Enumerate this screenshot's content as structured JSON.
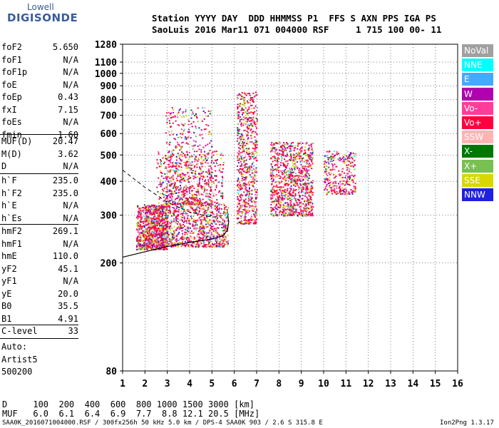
{
  "logo": {
    "line1": "Lowell",
    "line2": "DIGISONDE"
  },
  "header": {
    "line1": "Station YYYY DAY  DDD HHMMSS P1  FFS S AXN PPS IGA PS",
    "line2": "SaoLuis 2016 Mar11 071 004000 RSF     1 715 100 00- 11"
  },
  "params_group1": [
    {
      "k": "foF2",
      "v": "5.650"
    },
    {
      "k": "foF1",
      "v": "N/A"
    },
    {
      "k": "foF1p",
      "v": "N/A"
    },
    {
      "k": "foE",
      "v": "N/A"
    },
    {
      "k": "foEp",
      "v": "0.43"
    },
    {
      "k": "fxI",
      "v": "7.15"
    },
    {
      "k": "foEs",
      "v": "N/A"
    },
    {
      "k": "fmin",
      "v": "1.60"
    }
  ],
  "params_group2": [
    {
      "k": "MUF(D)",
      "v": "20.47"
    },
    {
      "k": "M(D)",
      "v": "3.62"
    },
    {
      "k": "D",
      "v": "N/A"
    }
  ],
  "params_group3": [
    {
      "k": "h`F",
      "v": "235.0"
    },
    {
      "k": "h`F2",
      "v": "235.0"
    },
    {
      "k": "h`E",
      "v": "N/A"
    },
    {
      "k": "h`Es",
      "v": "N/A"
    }
  ],
  "params_group4": [
    {
      "k": "hmF2",
      "v": "269.1"
    },
    {
      "k": "hmF1",
      "v": "N/A"
    },
    {
      "k": "hmE",
      "v": "110.0"
    },
    {
      "k": "yF2",
      "v": "45.1"
    },
    {
      "k": "yF1",
      "v": "N/A"
    },
    {
      "k": "yE",
      "v": "20.0"
    },
    {
      "k": "B0",
      "v": "35.5"
    },
    {
      "k": "B1",
      "v": "4.91"
    }
  ],
  "clevel": {
    "k": "C-level",
    "v": "33"
  },
  "auto": [
    "Auto:",
    "Artist5",
    "500200"
  ],
  "legend": [
    {
      "label": "NoVal",
      "color": "#a0a0a0"
    },
    {
      "label": "NNE",
      "color": "#00ffff"
    },
    {
      "label": "E",
      "color": "#44aaff"
    },
    {
      "label": "W",
      "color": "#b000b0"
    },
    {
      "label": "Vo-",
      "color": "#ff3c9a"
    },
    {
      "label": "Vo+",
      "color": "#ff0040"
    },
    {
      "label": "SSW",
      "color": "#ffb4b4"
    },
    {
      "label": "X-",
      "color": "#007800"
    },
    {
      "label": "X+",
      "color": "#78c050"
    },
    {
      "label": "SSE",
      "color": "#d8d800"
    },
    {
      "label": "NNW",
      "color": "#2020e0"
    }
  ],
  "chart_data": {
    "type": "scatter",
    "xlabel": "",
    "ylabel": "",
    "xlim": [
      1,
      16
    ],
    "ylim": [
      80,
      1280
    ],
    "y_scale": "log",
    "x_ticks": [
      1,
      2,
      3,
      4,
      5,
      6,
      7,
      8,
      9,
      10,
      11,
      12,
      13,
      14,
      15,
      16
    ],
    "y_ticks": [
      80,
      200,
      300,
      400,
      500,
      600,
      700,
      800,
      900,
      1000,
      1100,
      1280
    ],
    "grid": true,
    "clusters": [
      {
        "f": [
          1.6,
          3.0
        ],
        "h": [
          225,
          330
        ]
      },
      {
        "f": [
          2.0,
          5.7
        ],
        "h": [
          230,
          330
        ]
      },
      {
        "f": [
          2.9,
          5.0
        ],
        "h": [
          330,
          760
        ]
      },
      {
        "f": [
          2.5,
          5.5
        ],
        "h": [
          330,
          520
        ]
      },
      {
        "f": [
          6.1,
          7.0
        ],
        "h": [
          280,
          860
        ]
      },
      {
        "f": [
          7.6,
          9.5
        ],
        "h": [
          300,
          560
        ]
      },
      {
        "f": [
          10.0,
          11.4
        ],
        "h": [
          360,
          520
        ]
      }
    ],
    "profile_solid": [
      [
        1.0,
        210
      ],
      [
        2.0,
        220
      ],
      [
        3.0,
        230
      ],
      [
        4.0,
        238
      ],
      [
        5.0,
        245
      ],
      [
        5.5,
        252
      ],
      [
        5.7,
        265
      ],
      [
        5.75,
        285
      ],
      [
        5.7,
        300
      ]
    ],
    "profile_dashed": [
      [
        1.0,
        440
      ],
      [
        2.0,
        380
      ],
      [
        3.0,
        335
      ],
      [
        4.0,
        308
      ],
      [
        5.0,
        295
      ],
      [
        5.6,
        300
      ]
    ]
  },
  "footer": {
    "d_line": "D     100  200  400  600  800 1000 1500 3000 [km]",
    "muf_line": "MUF   6.0  6.1  6.4  6.9  7.7  8.8 12.1 20.5 [MHz]",
    "file_line": "SAA0K_2016071004000.RSF / 300fx256h 50 kHz 5.0 km / DPS-4 SAA0K 903 / 2.6 S 315.8 E",
    "version": "Ion2Png 1.3.17"
  }
}
